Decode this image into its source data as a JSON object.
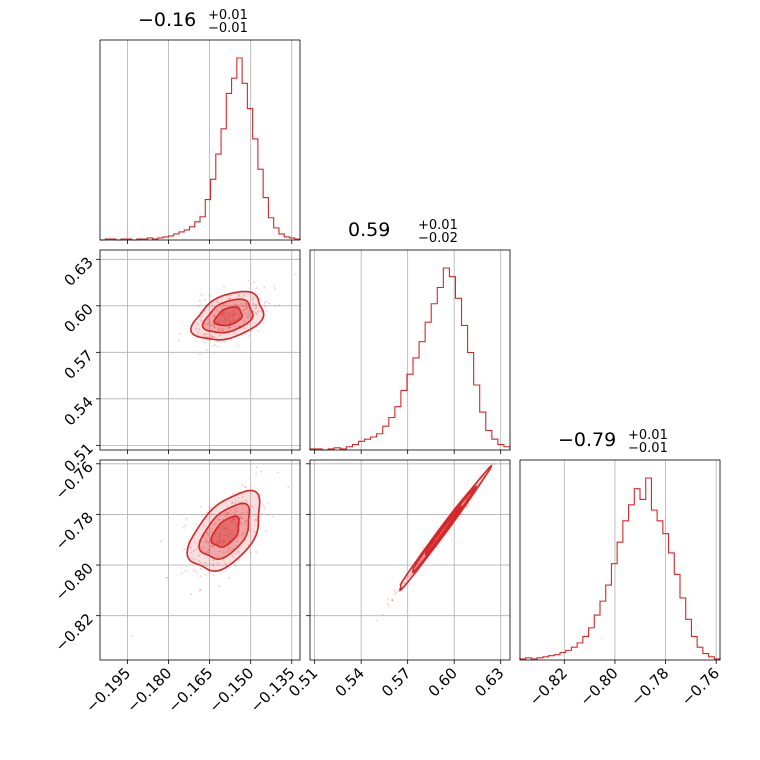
{
  "chart_data": {
    "type": "corner",
    "color": "#d62728",
    "grid": true,
    "parameters": [
      {
        "range": [
          -0.205,
          -0.132
        ],
        "ticks": [
          -0.195,
          -0.18,
          -0.165,
          -0.15,
          -0.135
        ],
        "tick_labels": [
          "−0.195",
          "−0.180",
          "−0.165",
          "−0.150",
          "−0.135"
        ],
        "title": {
          "median": "−0.16",
          "upper": "+0.01",
          "lower": "−0.01"
        }
      },
      {
        "range": [
          0.507,
          0.636
        ],
        "ticks": [
          0.51,
          0.54,
          0.57,
          0.6,
          0.63
        ],
        "tick_labels": [
          "0.51",
          "0.54",
          "0.57",
          "0.60",
          "0.63"
        ],
        "title": {
          "median": "0.59",
          "upper": "+0.01",
          "lower": "−0.02"
        }
      },
      {
        "range": [
          -0.8375,
          -0.7585
        ],
        "ticks": [
          -0.82,
          -0.8,
          -0.78,
          -0.76
        ],
        "tick_labels": [
          "−0.82",
          "−0.80",
          "−0.78",
          "−0.76"
        ],
        "title": {
          "median": "−0.79",
          "upper": "+0.01",
          "lower": "−0.01"
        }
      }
    ],
    "histograms": [
      {
        "param": 0,
        "counts": [
          0,
          1,
          1,
          0,
          1,
          1,
          0,
          1,
          1,
          2,
          1,
          2,
          3,
          4,
          6,
          8,
          10,
          13,
          18,
          23,
          40,
          60,
          85,
          110,
          145,
          160,
          180,
          155,
          130,
          100,
          70,
          42,
          22,
          12,
          6,
          3,
          2,
          1
        ]
      },
      {
        "param": 1,
        "counts": [
          1,
          1,
          0,
          1,
          2,
          1,
          3,
          5,
          8,
          10,
          12,
          15,
          22,
          30,
          40,
          55,
          70,
          85,
          100,
          118,
          135,
          150,
          168,
          160,
          140,
          115,
          90,
          60,
          35,
          18,
          10,
          5,
          3
        ]
      },
      {
        "param": 2,
        "counts": [
          1,
          2,
          1,
          2,
          3,
          4,
          5,
          7,
          9,
          12,
          16,
          22,
          30,
          42,
          55,
          70,
          90,
          110,
          130,
          145,
          160,
          150,
          170,
          140,
          130,
          118,
          100,
          80,
          58,
          38,
          22,
          12,
          6,
          3,
          1
        ]
      }
    ],
    "scatter_panels": [
      {
        "x_param": 0,
        "y_param": 1,
        "center": [
          -0.158,
          0.593
        ],
        "slope": 1.65,
        "along_sd": 0.0065,
        "across_sd": 0.0042,
        "contour_levels": [
          1.0,
          1.8,
          2.6
        ],
        "contour_fill_opacity": [
          0.45,
          0.3,
          0.15
        ]
      },
      {
        "x_param": 0,
        "y_param": 2,
        "center": [
          -0.159,
          -0.787
        ],
        "slope": 1.4,
        "along_sd": 0.0068,
        "across_sd": 0.0038,
        "contour_levels": [
          1.0,
          1.8,
          2.6
        ],
        "contour_fill_opacity": [
          0.45,
          0.3,
          0.15
        ]
      },
      {
        "x_param": 1,
        "y_param": 2,
        "center": [
          0.592,
          -0.787
        ],
        "slope": 0.82,
        "along_sd": 0.0145,
        "across_sd": 0.0007,
        "contour_levels": [
          1.0,
          1.8,
          2.6
        ],
        "contour_fill_opacity": [
          0.45,
          0.3,
          0.15
        ]
      }
    ]
  }
}
